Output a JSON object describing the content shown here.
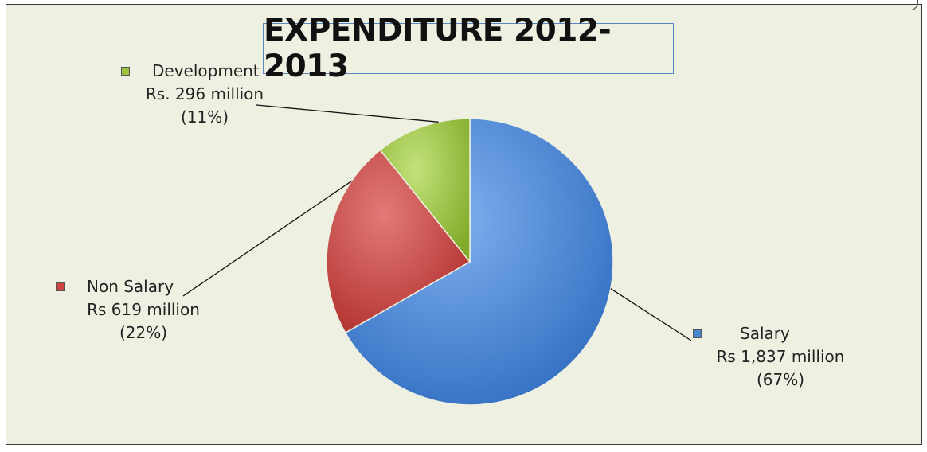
{
  "chart_data": {
    "type": "pie",
    "title": "EXPENDITURE 2012-2013",
    "slices": [
      {
        "name": "Salary",
        "value_text": "Rs 1,837  million",
        "pct_text": "(67%)",
        "value": 1837,
        "color": "#4a86d2"
      },
      {
        "name": "Non Salary",
        "value_text": "Rs 619  million",
        "pct_text": "(22%)",
        "value": 619,
        "color": "#cd4542"
      },
      {
        "name": "Development",
        "value_text": "Rs. 296 million",
        "pct_text": "(11%)",
        "value": 296,
        "color": "#9cc43e"
      }
    ],
    "legend": "inline-labels"
  }
}
